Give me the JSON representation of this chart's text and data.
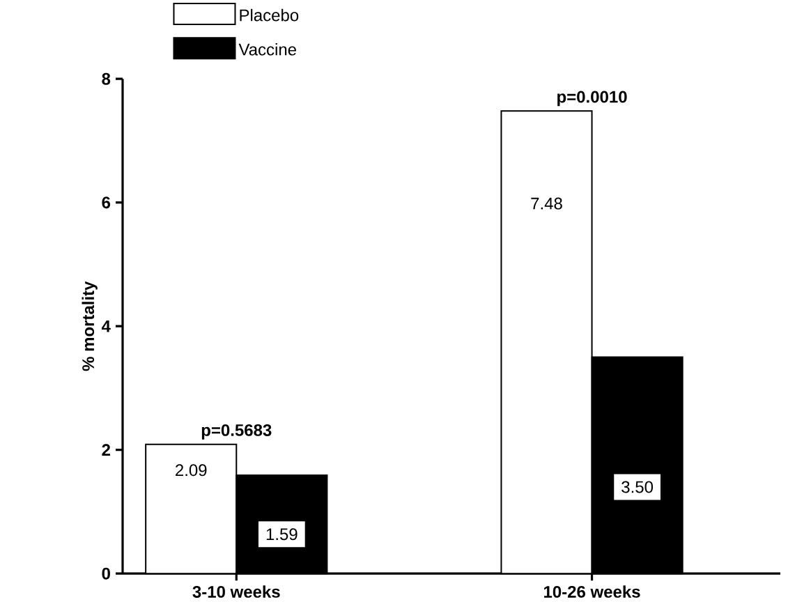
{
  "chart_data": {
    "type": "bar",
    "ylabel": "% mortality",
    "categories": [
      "3-10 weeks",
      "10-26 weeks"
    ],
    "series": [
      {
        "name": "Placebo",
        "color": "#ffffff",
        "values": [
          2.09,
          7.48
        ],
        "value_labels": [
          "2.09",
          "7.48"
        ]
      },
      {
        "name": "Vaccine",
        "color": "#000000",
        "values": [
          1.59,
          3.5
        ],
        "value_labels": [
          "1.59",
          "3.50"
        ]
      }
    ],
    "annotations": [
      "p=0.5683",
      "p=0.0010"
    ],
    "ylim": [
      0,
      8
    ],
    "yticks": [
      0,
      2,
      4,
      6,
      8
    ],
    "grid": false,
    "legend": "top left"
  }
}
